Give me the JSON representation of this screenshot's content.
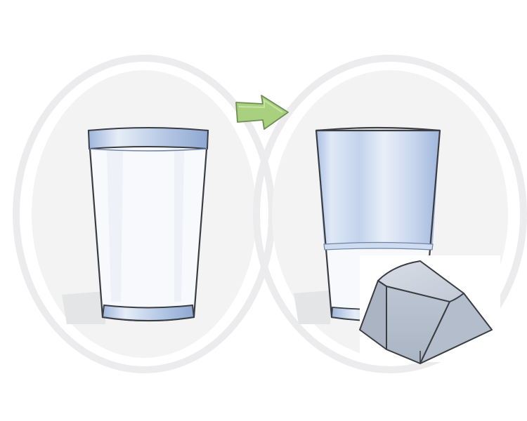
{
  "scene": {
    "description_icons": [
      "full-glass-icon",
      "arrow-right-icon",
      "half-glass-icon",
      "keycap-icon"
    ],
    "colors": {
      "background": "#ffffff",
      "halo": "#f1f1f2",
      "halo_stroke": "#e6e6e8",
      "outline": "#3a3d42",
      "water": "#f6f8fb",
      "glass_blue": "#b9cbe6",
      "glass_blue_dark": "#93acd4",
      "arrow_fill": "#a6cf7c",
      "arrow_stroke": "#6f8f55",
      "keycap_top": "#c9d1dc",
      "keycap_side": "#aeb8c6",
      "keycap_front": "#b8c2cf",
      "shadow": "#e2e3e5"
    },
    "half_glass_fill_level": 0.33
  }
}
